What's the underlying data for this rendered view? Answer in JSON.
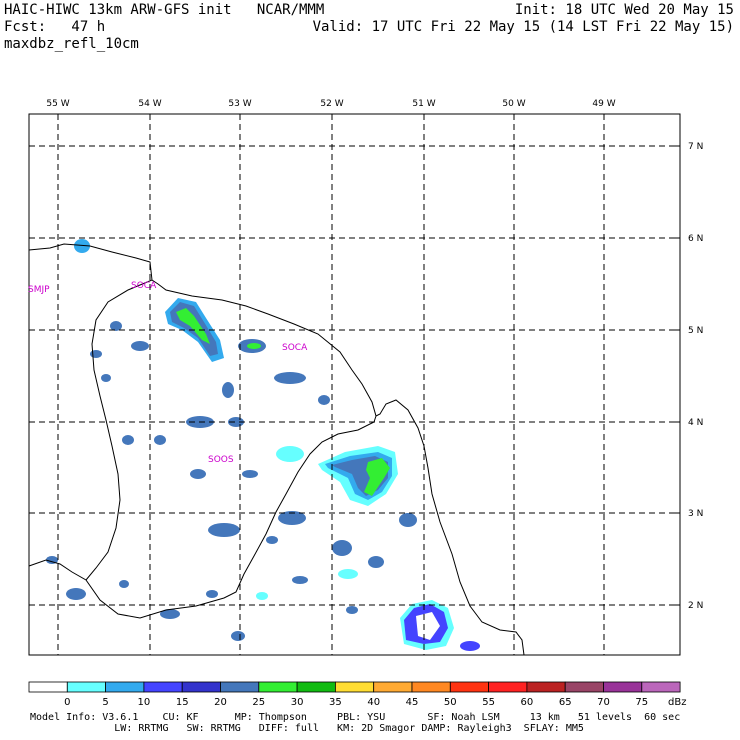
{
  "header": {
    "line1_left": "HAIC-HIWC 13km ARW-GFS init   NCAR/MMM",
    "line1_right": "Init: 18 UTC Wed 20 May 15",
    "line2_left": "Fcst:   47 h",
    "line2_right": "Valid: 17 UTC Fri 22 May 15 (14 LST Fri 22 May 15)",
    "line3_left": "maxdbz_refl_10cm"
  },
  "map": {
    "lon_labels": [
      "55 W",
      "54 W",
      "53 W",
      "52 W",
      "51 W",
      "50 W",
      "49 W"
    ],
    "lat_labels": [
      "7 N",
      "6 N",
      "5 N",
      "4 N",
      "3 N",
      "2 N"
    ],
    "stations": [
      "SMJP",
      "SOCA",
      "SOOS",
      "SOCA"
    ],
    "colors": {
      "dbz5": "#66ffff",
      "dbz10": "#33aaee",
      "dbz15": "#4444ff",
      "dbz20": "#3333cc",
      "dbz25": "#4477bb",
      "dbz30": "#33ee33",
      "dbz35": "#11bb11",
      "coast": "#000000"
    }
  },
  "colorbar": {
    "ticks": [
      "0",
      "5",
      "10",
      "15",
      "20",
      "25",
      "30",
      "35",
      "40",
      "45",
      "50",
      "55",
      "60",
      "65",
      "70",
      "75"
    ],
    "unit": "dBz",
    "colors": [
      "#ffffff",
      "#66ffff",
      "#33aaee",
      "#4444ff",
      "#3333cc",
      "#4477bb",
      "#33ee33",
      "#11bb11",
      "#ffdd33",
      "#ffaa33",
      "#ff8822",
      "#ff3311",
      "#ff2222",
      "#bb2222",
      "#994466",
      "#993399",
      "#bb66bb"
    ]
  },
  "footer": {
    "line1": "Model Info: V3.6.1    CU: KF      MP: Thompson     PBL: YSU       SF: Noah LSM     13 km   51 levels  60 sec",
    "line2": "              LW: RRTMG   SW: RRTMG   DIFF: full   KM: 2D Smagor DAMP: Rayleigh3  SFLAY: MM5"
  }
}
